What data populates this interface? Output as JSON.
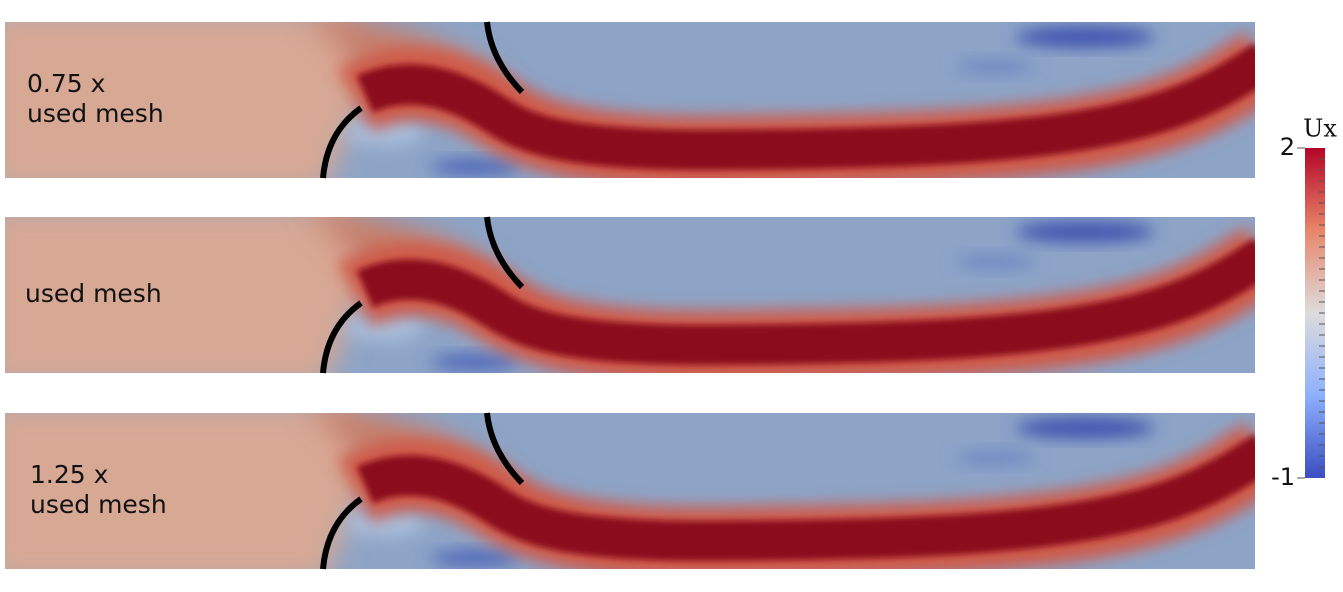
{
  "panels": [
    {
      "label": [
        "0.75 x",
        "used mesh"
      ]
    },
    {
      "label": [
        "used mesh"
      ]
    },
    {
      "label": [
        "1.25 x",
        "used mesh"
      ]
    }
  ],
  "colorbar": {
    "title": "Ux",
    "range": [
      -1,
      2
    ],
    "ticks": [
      2,
      -1
    ]
  }
}
